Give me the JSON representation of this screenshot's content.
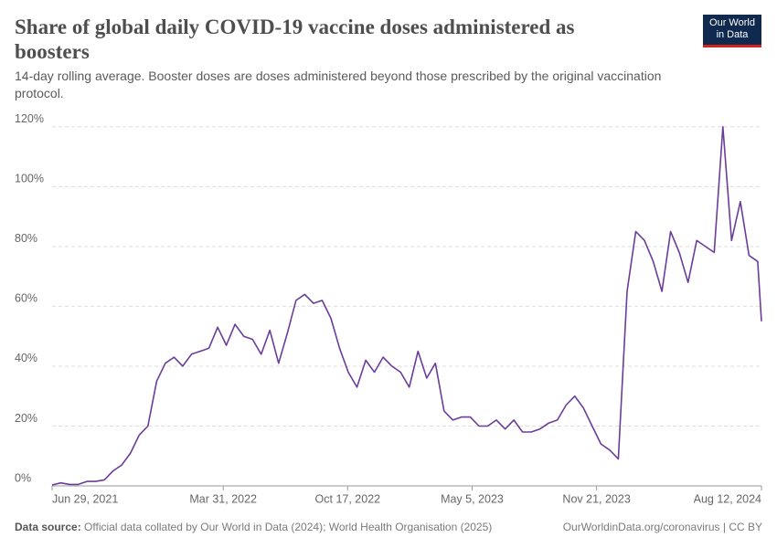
{
  "chart_data": {
    "type": "line",
    "title": "Share of global daily COVID-19 vaccine doses administered as boosters",
    "subtitle": "14-day rolling average. Booster doses are doses administered beyond those prescribed by the original vaccination protocol.",
    "logo": [
      "Our World",
      "in Data"
    ],
    "source_label": "Data source:",
    "source": "Official data collated by Our World in Data (2024); World Health Organisation (2025)",
    "credit": "OurWorldinData.org/coronavirus | CC BY",
    "color": "#6a3d9a",
    "grid": true,
    "x": [
      "2021-06-29",
      "2021-07-13",
      "2021-07-27",
      "2021-08-10",
      "2021-08-24",
      "2021-09-07",
      "2021-09-21",
      "2021-10-05",
      "2021-10-19",
      "2021-11-02",
      "2021-11-16",
      "2021-11-30",
      "2021-12-14",
      "2021-12-28",
      "2022-01-11",
      "2022-01-25",
      "2022-02-08",
      "2022-02-22",
      "2022-03-08",
      "2022-03-22",
      "2022-04-05",
      "2022-04-19",
      "2022-05-03",
      "2022-05-17",
      "2022-05-31",
      "2022-06-14",
      "2022-06-28",
      "2022-07-12",
      "2022-07-26",
      "2022-08-09",
      "2022-08-23",
      "2022-09-06",
      "2022-09-20",
      "2022-10-04",
      "2022-10-18",
      "2022-11-01",
      "2022-11-15",
      "2022-11-29",
      "2022-12-13",
      "2022-12-27",
      "2023-01-10",
      "2023-01-24",
      "2023-02-07",
      "2023-02-21",
      "2023-03-07",
      "2023-03-21",
      "2023-04-04",
      "2023-04-18",
      "2023-05-02",
      "2023-05-16",
      "2023-05-30",
      "2023-06-13",
      "2023-06-27",
      "2023-07-11",
      "2023-07-25",
      "2023-08-08",
      "2023-08-22",
      "2023-09-05",
      "2023-09-19",
      "2023-10-03",
      "2023-10-17",
      "2023-10-31",
      "2023-11-14",
      "2023-11-28",
      "2023-12-12",
      "2023-12-26",
      "2024-01-09",
      "2024-01-23",
      "2024-02-06",
      "2024-02-20",
      "2024-03-05",
      "2024-03-19",
      "2024-04-02",
      "2024-04-16",
      "2024-04-30",
      "2024-05-14",
      "2024-05-28",
      "2024-06-11",
      "2024-06-25",
      "2024-07-09",
      "2024-07-23",
      "2024-08-06",
      "2024-08-12"
    ],
    "values": [
      0.3,
      1,
      0.5,
      0.5,
      1.5,
      1.5,
      2,
      5,
      7,
      11,
      17,
      20,
      35,
      41,
      43,
      40,
      44,
      45,
      46,
      53,
      47,
      54,
      50,
      49,
      44,
      52,
      41,
      51,
      62,
      64,
      61,
      62,
      56,
      46,
      38,
      33,
      42,
      38,
      43,
      40,
      38,
      33,
      45,
      36,
      41,
      25,
      22,
      23,
      23,
      20,
      20,
      22,
      19,
      22,
      18,
      18,
      19,
      21,
      22,
      27,
      30,
      26,
      20,
      14,
      12,
      9,
      65,
      85,
      82,
      75,
      65,
      85,
      78,
      68,
      82,
      80,
      78,
      120,
      82,
      95,
      77,
      75,
      55
    ],
    "xlim": [
      "2021-06-29",
      "2024-08-12"
    ],
    "xticks": [
      {
        "value": "2021-06-29",
        "label": "Jun 29, 2021"
      },
      {
        "value": "2022-03-31",
        "label": "Mar 31, 2022"
      },
      {
        "value": "2022-10-17",
        "label": "Oct 17, 2022"
      },
      {
        "value": "2023-05-05",
        "label": "May 5, 2023"
      },
      {
        "value": "2023-11-21",
        "label": "Nov 21, 2023"
      },
      {
        "value": "2024-08-12",
        "label": "Aug 12, 2024"
      }
    ],
    "ylim": [
      0,
      123
    ],
    "yticks": [
      {
        "value": 0,
        "label": "0%"
      },
      {
        "value": 20,
        "label": "20%"
      },
      {
        "value": 40,
        "label": "40%"
      },
      {
        "value": 60,
        "label": "60%"
      },
      {
        "value": 80,
        "label": "80%"
      },
      {
        "value": 100,
        "label": "100%"
      },
      {
        "value": 120,
        "label": "120%"
      }
    ]
  }
}
